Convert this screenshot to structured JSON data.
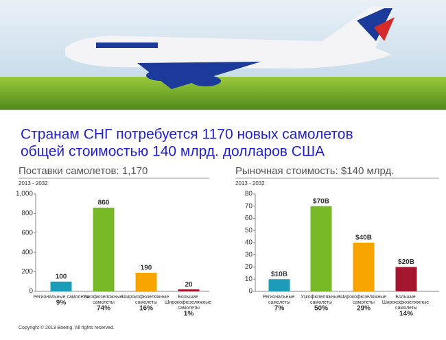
{
  "title": [
    "Странам СНГ потребуется 1170 новых самолетов",
    "общей стоимостью 140 млрд. долларов США"
  ],
  "copyright": "Copyright © 2013 Boeing. All rights reserved.",
  "chart_data": [
    {
      "type": "bar",
      "title": "Поставки самолетов: 1,170",
      "subtitle": "2013 - 2032",
      "categories": [
        "Региональные самолеты",
        "Узкофюзеляжные самолеты",
        "Широкофюзеляжные самолеты",
        "Большие Широкофюзеляжные самолеты"
      ],
      "values": [
        100,
        860,
        190,
        20
      ],
      "shares": [
        "9%",
        "74%",
        "16%",
        "1%"
      ],
      "colors": [
        "#1c9cb8",
        "#78b928",
        "#f7a400",
        "#a3162e"
      ],
      "ylim": [
        0,
        1000
      ],
      "yticks": [
        0,
        200,
        400,
        600,
        800,
        {
          "value": 1000,
          "label": "1,000"
        }
      ]
    },
    {
      "type": "bar",
      "title": "Рыночная стоимость: $140 млрд.",
      "subtitle": "2013 - 2032",
      "categories": [
        "Региональные самолеты",
        "Узкофюзеляжные самолеты",
        "Широкофюзеляжные самолеты",
        "Большие Широкофюзеляжные самолеты"
      ],
      "values": [
        10,
        70,
        40,
        20
      ],
      "value_labels": [
        "$10B",
        "$70B",
        "$40B",
        "$20B"
      ],
      "shares": [
        "7%",
        "50%",
        "29%",
        "14%"
      ],
      "colors": [
        "#1c9cb8",
        "#78b928",
        "#f7a400",
        "#a3162e"
      ],
      "ylim": [
        0,
        80
      ],
      "yticks": [
        0,
        10,
        20,
        30,
        40,
        50,
        60,
        70,
        80
      ]
    }
  ]
}
